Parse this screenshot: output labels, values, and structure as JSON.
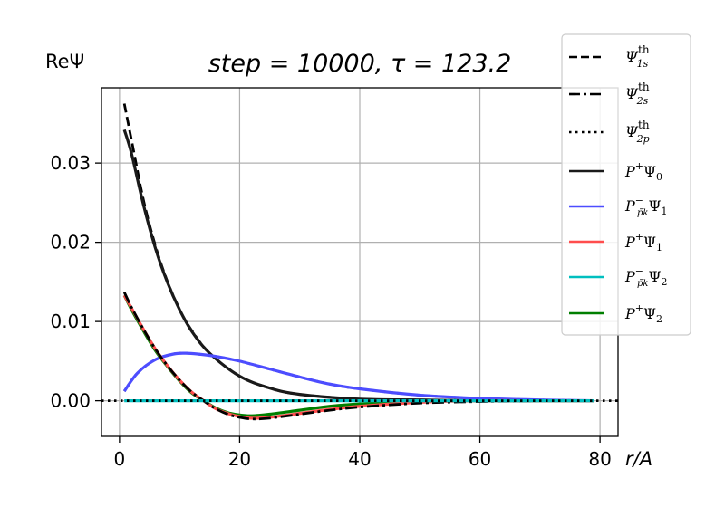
{
  "chart_data": {
    "type": "line",
    "title": "step = 10000, τ = 123.2",
    "ylabel": "ReΨ",
    "xlabel": "r/A",
    "xlim": [
      -3,
      83
    ],
    "ylim": [
      -0.0045,
      0.0395
    ],
    "xticks": [
      0,
      20,
      40,
      60,
      80
    ],
    "yticks": [
      0.0,
      0.01,
      0.02,
      0.03
    ],
    "ytick_labels": [
      "0.00",
      "0.01",
      "0.02",
      "0.03"
    ],
    "grid": true,
    "legend_position": "upper-right (outside)",
    "legend": [
      {
        "label": "Ψ_1s^th",
        "style": "dashed",
        "color": "#000000"
      },
      {
        "label": "Ψ_2s^th",
        "style": "dashdot",
        "color": "#000000"
      },
      {
        "label": "Ψ_2p^th",
        "style": "dotted",
        "color": "#000000"
      },
      {
        "label": "P⁺Ψ₀",
        "style": "solid",
        "color": "#1a1a1a"
      },
      {
        "label": "P⁻_p̄k Ψ₁",
        "style": "solid",
        "color": "#4d4dff"
      },
      {
        "label": "P⁺Ψ₁",
        "style": "solid",
        "color": "#ff4d4d"
      },
      {
        "label": "P⁻_p̄k Ψ₂",
        "style": "solid",
        "color": "#00bfbf"
      },
      {
        "label": "P⁺Ψ₂",
        "style": "solid",
        "color": "#007f00"
      }
    ],
    "series": [
      {
        "name": "Ψ_1s^th",
        "style": "dashed",
        "color": "#000000",
        "x": [
          0.8,
          2,
          4,
          6,
          8,
          10,
          12,
          15,
          20,
          25,
          30,
          40,
          50,
          60,
          70,
          79
        ],
        "y": [
          0.0375,
          0.0329,
          0.0253,
          0.0195,
          0.015,
          0.0115,
          0.0089,
          0.006,
          0.0031,
          0.0016,
          0.0008,
          0.0002,
          0.0001,
          0.0,
          0.0,
          0.0
        ]
      },
      {
        "name": "P⁺Ψ₀",
        "style": "solid",
        "color": "#1a1a1a",
        "x": [
          0.8,
          2,
          4,
          6,
          8,
          10,
          12,
          15,
          20,
          25,
          30,
          40,
          50,
          60,
          70,
          79
        ],
        "y": [
          0.0342,
          0.0312,
          0.0247,
          0.0192,
          0.0149,
          0.0115,
          0.0088,
          0.006,
          0.0031,
          0.0016,
          0.0008,
          0.0002,
          0.0001,
          0.0,
          0.0,
          0.0
        ]
      },
      {
        "name": "Ψ_2p^th",
        "style": "dotted",
        "color": "#000000",
        "x": [
          0.8,
          3,
          6,
          9,
          11,
          13,
          16,
          20,
          25,
          30,
          35,
          40,
          50,
          60,
          70,
          79
        ],
        "y": [
          0.0012,
          0.0035,
          0.0052,
          0.0059,
          0.006,
          0.0059,
          0.0056,
          0.005,
          0.004,
          0.003,
          0.0021,
          0.0015,
          0.0007,
          0.0003,
          0.0001,
          0.0
        ]
      },
      {
        "name": "P⁻_p̄k Ψ₁",
        "style": "solid",
        "color": "#4d4dff",
        "x": [
          0.8,
          3,
          6,
          9,
          11,
          13,
          16,
          20,
          25,
          30,
          35,
          40,
          50,
          60,
          70,
          79
        ],
        "y": [
          0.0012,
          0.0035,
          0.0052,
          0.0059,
          0.006,
          0.0059,
          0.0056,
          0.005,
          0.004,
          0.003,
          0.0021,
          0.0015,
          0.0007,
          0.0003,
          0.0001,
          0.0
        ]
      },
      {
        "name": "P⁺Ψ₂",
        "style": "solid",
        "color": "#007f00",
        "x": [
          0.8,
          2,
          4,
          6,
          8,
          10,
          12,
          14,
          16,
          18,
          20,
          22,
          25,
          30,
          35,
          40,
          50,
          60,
          70,
          79
        ],
        "y": [
          0.0133,
          0.0115,
          0.0088,
          0.0063,
          0.0043,
          0.0025,
          0.001,
          0.0,
          -0.0009,
          -0.0015,
          -0.0018,
          -0.0019,
          -0.0017,
          -0.0012,
          -0.0007,
          -0.0004,
          -0.0001,
          0.0,
          0.0,
          0.0
        ]
      },
      {
        "name": "P⁺Ψ₁",
        "style": "solid",
        "color": "#ff4d4d",
        "x": [
          0.8,
          2,
          4,
          6,
          8,
          10,
          12,
          14,
          16,
          18,
          20,
          22,
          25,
          30,
          35,
          40,
          50,
          60,
          70,
          79
        ],
        "y": [
          0.0133,
          0.0117,
          0.009,
          0.0065,
          0.0044,
          0.0026,
          0.0011,
          0.0,
          -0.001,
          -0.0016,
          -0.002,
          -0.0022,
          -0.0021,
          -0.0016,
          -0.0011,
          -0.0007,
          -0.0002,
          0.0,
          0.0,
          0.0
        ]
      },
      {
        "name": "Ψ_2s^th",
        "style": "dashdot",
        "color": "#000000",
        "x": [
          0.8,
          2,
          4,
          6,
          8,
          10,
          12,
          14,
          16,
          18,
          20,
          22,
          25,
          30,
          35,
          40,
          50,
          60,
          70,
          79
        ],
        "y": [
          0.0137,
          0.0118,
          0.009,
          0.0065,
          0.0044,
          0.0026,
          0.0011,
          0.0,
          -0.001,
          -0.0017,
          -0.0021,
          -0.0023,
          -0.0022,
          -0.0017,
          -0.0012,
          -0.0008,
          -0.0003,
          -0.0001,
          0.0,
          0.0
        ]
      },
      {
        "name": "P⁻_p̄k Ψ₂",
        "style": "solid",
        "color": "#00bfbf",
        "x": [
          0.8,
          79
        ],
        "y": [
          0.0,
          0.0
        ]
      },
      {
        "name": "zero-reference",
        "style": "dotted",
        "color": "#000000",
        "x": [
          -3,
          83
        ],
        "y": [
          0.0,
          0.0
        ]
      }
    ]
  }
}
